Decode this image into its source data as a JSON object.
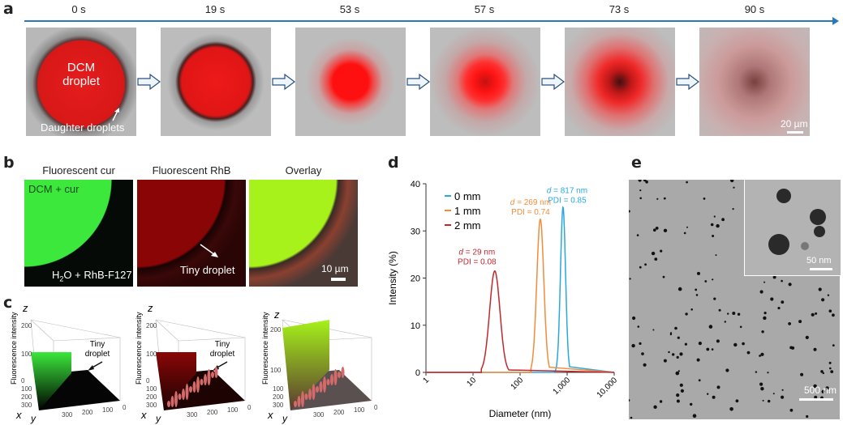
{
  "panel_a": {
    "label": "a",
    "times": [
      "0 s",
      "19 s",
      "53 s",
      "57 s",
      "73 s",
      "90 s"
    ],
    "droplet_label": [
      "DCM",
      "droplet"
    ],
    "daughter_label": "Daughter droplets",
    "scale_bar": "20 µm"
  },
  "panel_b": {
    "label": "b",
    "titles": [
      "Fluorescent cur",
      "Fluorescent RhB",
      "Overlay"
    ],
    "dcm_label": "DCM + cur",
    "water_label_pre": "H",
    "water_sub": "2",
    "water_label_post": "O + RhB-F127",
    "tiny_label": "Tiny droplet",
    "scale_bar": "10 µm"
  },
  "panel_c": {
    "label": "c",
    "z_axis": "z",
    "x_axis": "x",
    "y_axis": "y",
    "ylabel": "Fluorescence intensity",
    "z_ticks_12": [
      "200",
      "100",
      "0"
    ],
    "z_ticks_3": [
      "200",
      "100"
    ],
    "x_ticks": [
      "100",
      "200",
      "300"
    ],
    "y_ticks": [
      "300",
      "200",
      "100",
      "0"
    ],
    "tiny_label": [
      "Tiny",
      "droplet"
    ]
  },
  "panel_e": {
    "label": "e",
    "scale_bar": "500 nm",
    "inset_scale_bar": "50 nm"
  },
  "chart_data": {
    "panel_label": "d",
    "type": "line",
    "xscale": "log",
    "xlabel": "Diameter (nm)",
    "ylabel": "Intensity (%)",
    "xlim": [
      1,
      10000
    ],
    "ylim": [
      0,
      40
    ],
    "x_ticks": [
      "1",
      "10",
      "100",
      "1,000",
      "10,000"
    ],
    "y_ticks": [
      "0",
      "10",
      "20",
      "30",
      "40"
    ],
    "legend_position": "top-left",
    "grid": false,
    "series": [
      {
        "name": "0 mm",
        "color": "#29a8e0",
        "peak_diameter": 817,
        "peak_intensity": 35,
        "annot": [
          "d = 817 nm",
          "PDI = 0.85"
        ],
        "range": [
          480,
          1130
        ]
      },
      {
        "name": "1 mm",
        "color": "#f08c3c",
        "peak_diameter": 269,
        "peak_intensity": 32.5,
        "annot": [
          "d = 269 nm",
          "PDI = 0.74"
        ],
        "range": [
          170,
          420
        ]
      },
      {
        "name": "2 mm",
        "color": "#c0282d",
        "peak_diameter": 29,
        "peak_intensity": 21.5,
        "annot": [
          "d = 29 nm",
          "PDI = 0.08"
        ],
        "range": [
          15,
          58
        ]
      }
    ]
  }
}
